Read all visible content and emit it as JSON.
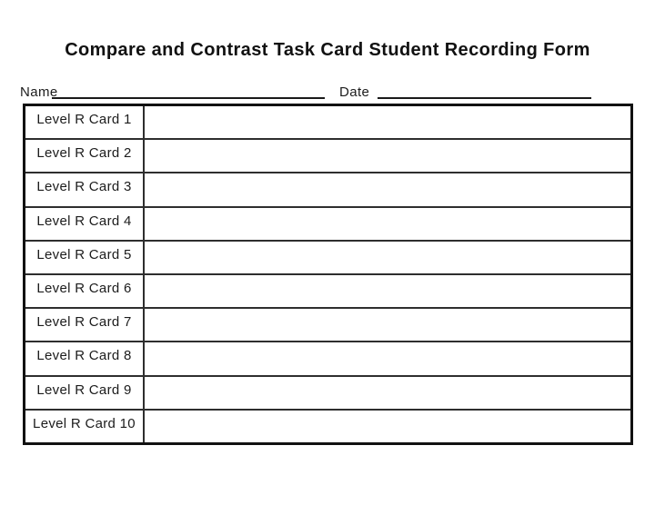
{
  "title": "Compare and Contrast Task Card Student Recording Form",
  "form": {
    "name_label": "Name",
    "name_value": "",
    "date_label": "Date",
    "date_value": ""
  },
  "table": {
    "rows": [
      {
        "label": "Level R Card 1",
        "response": ""
      },
      {
        "label": "Level R Card 2",
        "response": ""
      },
      {
        "label": "Level R Card 3",
        "response": ""
      },
      {
        "label": "Level R Card 4",
        "response": ""
      },
      {
        "label": "Level R Card 5",
        "response": ""
      },
      {
        "label": "Level R Card 6",
        "response": ""
      },
      {
        "label": "Level R Card 7",
        "response": ""
      },
      {
        "label": "Level R Card 8",
        "response": ""
      },
      {
        "label": "Level R Card 9",
        "response": ""
      },
      {
        "label": "Level R Card 10",
        "response": ""
      }
    ]
  },
  "colors": {
    "ink": "#1a1a1a",
    "paper": "#ffffff"
  }
}
